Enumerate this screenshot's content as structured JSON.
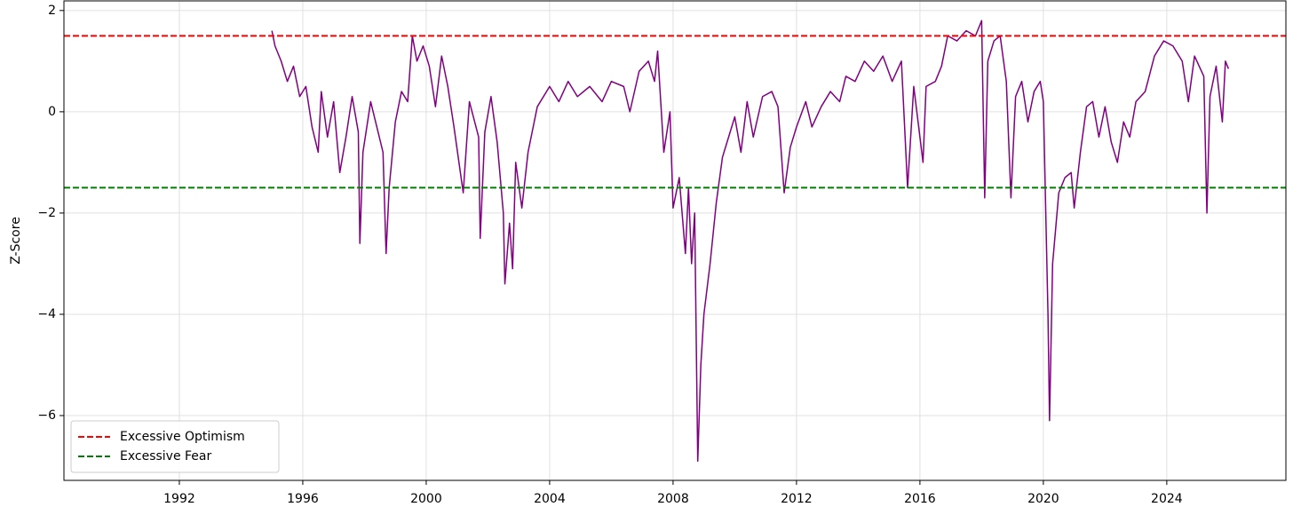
{
  "chart_data": {
    "type": "line",
    "ylabel": "Z-Score",
    "xlim": [
      1988.26,
      2027.86
    ],
    "ylim": [
      -7.28,
      2.19
    ],
    "xticks": [
      1992,
      1996,
      2000,
      2004,
      2008,
      2012,
      2016,
      2020,
      2024
    ],
    "yticks": [
      2,
      0,
      {
        "value": -2,
        "label": "−2"
      },
      {
        "value": -4,
        "label": "−4"
      },
      {
        "value": -6,
        "label": "−6"
      }
    ],
    "grid": true,
    "legend": "lower left",
    "color": "#800080",
    "hlines": [
      {
        "name": "Excessive Optimism",
        "value": 1.5,
        "color": "#ff0000"
      },
      {
        "name": "Excessive Fear",
        "value": -1.5,
        "color": "#008000"
      }
    ],
    "x": [
      1995.0,
      1995.1,
      1995.3,
      1995.5,
      1995.7,
      1995.9,
      1996.1,
      1996.3,
      1996.5,
      1996.6,
      1996.8,
      1997.0,
      1997.2,
      1997.4,
      1997.6,
      1997.8,
      1997.85,
      1997.95,
      1998.2,
      1998.4,
      1998.6,
      1998.7,
      1998.8,
      1999.0,
      1999.2,
      1999.4,
      1999.55,
      1999.7,
      1999.9,
      2000.1,
      2000.3,
      2000.5,
      2000.7,
      2000.9,
      2001.2,
      2001.4,
      2001.7,
      2001.75,
      2001.9,
      2002.1,
      2002.3,
      2002.5,
      2002.55,
      2002.7,
      2002.8,
      2002.9,
      2003.1,
      2003.3,
      2003.6,
      2004.0,
      2004.3,
      2004.6,
      2004.9,
      2005.3,
      2005.7,
      2006.0,
      2006.4,
      2006.6,
      2006.9,
      2007.2,
      2007.4,
      2007.5,
      2007.6,
      2007.7,
      2007.9,
      2008.0,
      2008.2,
      2008.4,
      2008.5,
      2008.6,
      2008.7,
      2008.8,
      2008.9,
      2009.0,
      2009.2,
      2009.4,
      2009.6,
      2009.8,
      2010.0,
      2010.2,
      2010.4,
      2010.6,
      2010.9,
      2011.2,
      2011.4,
      2011.6,
      2011.8,
      2012.0,
      2012.3,
      2012.5,
      2012.8,
      2013.1,
      2013.4,
      2013.6,
      2013.9,
      2014.2,
      2014.5,
      2014.8,
      2015.1,
      2015.4,
      2015.6,
      2015.8,
      2016.1,
      2016.2,
      2016.5,
      2016.7,
      2016.9,
      2017.2,
      2017.5,
      2017.8,
      2018.0,
      2018.1,
      2018.2,
      2018.4,
      2018.6,
      2018.8,
      2018.95,
      2019.1,
      2019.3,
      2019.5,
      2019.7,
      2019.9,
      2020.0,
      2020.15,
      2020.2,
      2020.3,
      2020.5,
      2020.7,
      2020.9,
      2021.0,
      2021.2,
      2021.4,
      2021.6,
      2021.8,
      2022.0,
      2022.2,
      2022.4,
      2022.6,
      2022.8,
      2023.0,
      2023.3,
      2023.6,
      2023.9,
      2024.2,
      2024.5,
      2024.7,
      2024.9,
      2025.2,
      2025.3,
      2025.4,
      2025.6,
      2025.8,
      2025.9,
      2026.0
    ],
    "values": [
      1.6,
      1.3,
      1.0,
      0.6,
      0.9,
      0.3,
      0.5,
      -0.3,
      -0.8,
      0.4,
      -0.5,
      0.2,
      -1.2,
      -0.5,
      0.3,
      -0.4,
      -2.6,
      -0.8,
      0.2,
      -0.3,
      -0.8,
      -2.8,
      -1.5,
      -0.2,
      0.4,
      0.2,
      1.5,
      1.0,
      1.3,
      0.9,
      0.1,
      1.1,
      0.5,
      -0.3,
      -1.6,
      0.2,
      -0.5,
      -2.5,
      -0.4,
      0.3,
      -0.6,
      -2.0,
      -3.4,
      -2.2,
      -3.1,
      -1.0,
      -1.9,
      -0.8,
      0.1,
      0.5,
      0.2,
      0.6,
      0.3,
      0.5,
      0.2,
      0.6,
      0.5,
      0.0,
      0.8,
      1.0,
      0.6,
      1.2,
      0.2,
      -0.8,
      0.0,
      -1.9,
      -1.3,
      -2.8,
      -1.5,
      -3.0,
      -2.0,
      -6.9,
      -5.0,
      -4.0,
      -3.0,
      -1.8,
      -0.9,
      -0.5,
      -0.1,
      -0.8,
      0.2,
      -0.5,
      0.3,
      0.4,
      0.1,
      -1.6,
      -0.7,
      -0.3,
      0.2,
      -0.3,
      0.1,
      0.4,
      0.2,
      0.7,
      0.6,
      1.0,
      0.8,
      1.1,
      0.6,
      1.0,
      -1.5,
      0.5,
      -1.0,
      0.5,
      0.6,
      0.9,
      1.5,
      1.4,
      1.6,
      1.5,
      1.8,
      -1.7,
      1.0,
      1.4,
      1.5,
      0.6,
      -1.7,
      0.3,
      0.6,
      -0.2,
      0.4,
      0.6,
      0.2,
      -4.0,
      -6.1,
      -3.0,
      -1.6,
      -1.3,
      -1.2,
      -1.9,
      -0.8,
      0.1,
      0.2,
      -0.5,
      0.1,
      -0.6,
      -1.0,
      -0.2,
      -0.5,
      0.2,
      0.4,
      1.1,
      1.4,
      1.3,
      1.0,
      0.2,
      1.1,
      0.7,
      -2.0,
      0.3,
      0.9,
      -0.2,
      1.0,
      0.85
    ]
  }
}
